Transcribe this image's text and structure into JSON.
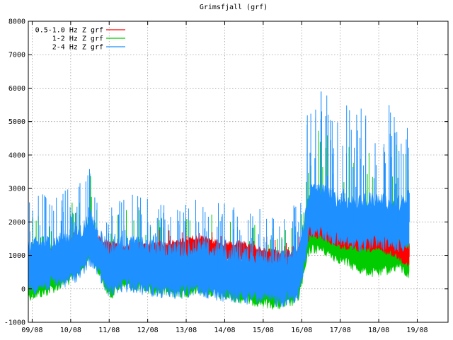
{
  "chart_data": {
    "type": "line",
    "title": "Grimsfjall (grf)",
    "xlabel": "",
    "ylabel": "",
    "ylim": [
      -1000,
      8000
    ],
    "y_ticks": [
      -1000,
      0,
      1000,
      2000,
      3000,
      4000,
      5000,
      6000,
      7000,
      8000
    ],
    "x_tick_labels": [
      "09/08",
      "10/08",
      "11/08",
      "12/08",
      "13/08",
      "14/08",
      "15/08",
      "16/08",
      "17/08",
      "18/08",
      "19/08"
    ],
    "x_unit": "day",
    "xlim": [
      8.9,
      19.8
    ],
    "grid": true,
    "legend_position": "top-left",
    "series": [
      {
        "name": "0.5-1.0 Hz Z grf",
        "color": "#ff0000",
        "x": [
          8.9,
          9.3,
          9.7,
          10.0,
          10.3,
          10.5,
          10.7,
          11.0,
          11.3,
          11.6,
          12.0,
          12.5,
          13.0,
          13.3,
          13.6,
          14.0,
          14.5,
          15.0,
          15.5,
          15.9,
          16.05,
          16.2,
          16.5,
          16.8,
          17.0,
          17.5,
          17.8,
          18.0,
          18.3,
          18.5,
          18.7,
          18.8
        ],
        "y": [
          700,
          800,
          900,
          1000,
          1200,
          1500,
          1300,
          1100,
          1000,
          1000,
          1100,
          1100,
          1200,
          1300,
          1200,
          1100,
          1100,
          900,
          800,
          900,
          1200,
          1800,
          1800,
          1600,
          1500,
          1400,
          1400,
          1400,
          1300,
          1200,
          1000,
          950
        ]
      },
      {
        "name": "1-2 Hz Z grf",
        "color": "#00cc00",
        "x": [
          8.9,
          9.3,
          9.7,
          10.0,
          10.3,
          10.5,
          10.7,
          11.0,
          11.3,
          11.6,
          12.0,
          12.5,
          13.0,
          13.3,
          13.6,
          14.0,
          14.5,
          15.0,
          15.5,
          15.9,
          16.05,
          16.2,
          16.5,
          16.8,
          17.0,
          17.5,
          17.8,
          18.0,
          18.3,
          18.5,
          18.7,
          18.8
        ],
        "y": [
          200,
          300,
          500,
          700,
          1000,
          1500,
          1000,
          200,
          500,
          500,
          400,
          300,
          300,
          400,
          300,
          200,
          100,
          0,
          -100,
          100,
          800,
          1600,
          1600,
          1400,
          1300,
          1000,
          900,
          900,
          1000,
          1100,
          900,
          800
        ]
      },
      {
        "name": "2-4 Hz Z grf",
        "color": "#1e90ff",
        "x": [
          8.9,
          9.3,
          9.7,
          10.0,
          10.3,
          10.5,
          10.7,
          11.0,
          11.3,
          11.6,
          12.0,
          12.5,
          13.0,
          13.3,
          13.6,
          14.0,
          14.5,
          15.0,
          15.5,
          15.9,
          16.05,
          16.2,
          16.5,
          16.8,
          17.0,
          17.5,
          17.8,
          18.0,
          18.3,
          18.5,
          18.7,
          18.8
        ],
        "y": [
          600,
          700,
          800,
          900,
          1100,
          1500,
          1100,
          500,
          700,
          700,
          600,
          500,
          500,
          600,
          500,
          400,
          350,
          300,
          250,
          400,
          1200,
          2300,
          2300,
          2100,
          2000,
          1900,
          2000,
          2000,
          1900,
          1900,
          1900,
          2000
        ]
      }
    ]
  }
}
